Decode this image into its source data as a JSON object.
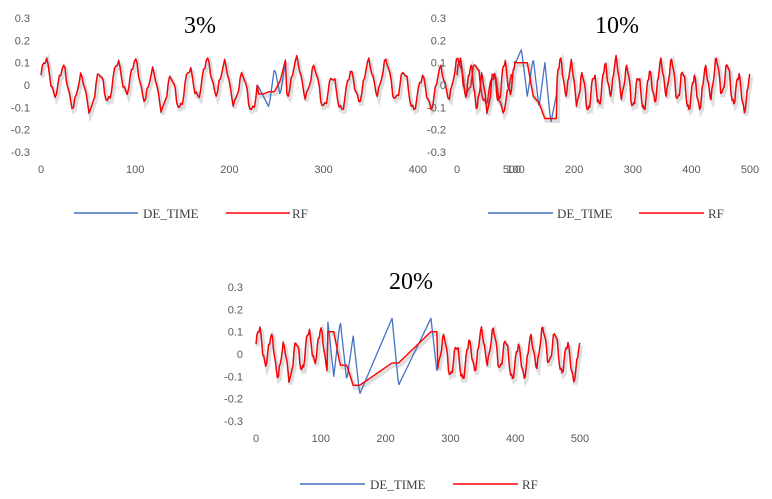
{
  "chart_data": [
    {
      "type": "line",
      "title": "3%",
      "xlim": [
        0,
        500
      ],
      "ylim": [
        -0.3,
        0.3
      ],
      "x_ticks": [
        "0",
        "100",
        "200",
        "300",
        "400",
        "500"
      ],
      "y_ticks": [
        "0.3",
        "0.2",
        "0.1",
        "0",
        "-0.1",
        "-0.2",
        "-0.3"
      ],
      "grid": false,
      "legend": "bottom",
      "series": [
        {
          "name": "DE_TIME",
          "color": "#4472C4",
          "x": [
            230,
            236,
            242,
            248,
            254,
            260
          ],
          "y": [
            0.0,
            -0.05,
            -0.1,
            0.08,
            -0.05,
            0.12
          ]
        },
        {
          "name": "RF",
          "color": "#FF0000",
          "x": [
            230,
            236,
            242,
            248,
            254,
            260
          ],
          "y": [
            -0.04,
            -0.04,
            -0.03,
            -0.03,
            0.02,
            0.12
          ]
        }
      ]
    },
    {
      "type": "line",
      "title": "10%",
      "xlim": [
        0,
        500
      ],
      "ylim": [
        -0.3,
        0.3
      ],
      "x_ticks": [
        "0",
        "100",
        "200",
        "300",
        "400",
        "500"
      ],
      "y_ticks": [
        "0.3",
        "0.2",
        "0.1",
        "0",
        "-0.1",
        "-0.2",
        "-0.3"
      ],
      "grid": false,
      "legend": "bottom",
      "series": [
        {
          "name": "DE_TIME",
          "color": "#4472C4",
          "x": [
            100,
            110,
            120,
            130,
            140,
            150,
            160,
            170
          ],
          "y": [
            0.1,
            0.16,
            -0.05,
            0.12,
            -0.1,
            0.1,
            -0.17,
            -0.04
          ]
        },
        {
          "name": "RF",
          "color": "#FF0000",
          "x": [
            100,
            110,
            120,
            130,
            140,
            150,
            160,
            170
          ],
          "y": [
            0.1,
            0.1,
            0.1,
            -0.05,
            -0.08,
            -0.15,
            -0.15,
            -0.15
          ]
        }
      ]
    },
    {
      "type": "line",
      "title": "20%",
      "xlim": [
        0,
        500
      ],
      "ylim": [
        -0.3,
        0.3
      ],
      "x_ticks": [
        "0",
        "100",
        "200",
        "300",
        "400",
        "500"
      ],
      "y_ticks": [
        "0.3",
        "0.2",
        "0.1",
        "0",
        "-0.1",
        "-0.2",
        "-0.3"
      ],
      "grid": false,
      "legend": "bottom",
      "series": [
        {
          "name": "DE_TIME",
          "color": "#4472C4",
          "x": [
            110,
            120,
            130,
            140,
            150,
            160,
            210,
            220,
            270,
            280
          ],
          "y": [
            0.17,
            -0.1,
            0.15,
            -0.12,
            0.08,
            -0.18,
            0.16,
            -0.14,
            0.16,
            -0.1
          ]
        },
        {
          "name": "RF",
          "color": "#FF0000",
          "x": [
            110,
            120,
            130,
            140,
            150,
            160,
            210,
            220,
            270,
            280
          ],
          "y": [
            0.1,
            0.1,
            -0.05,
            -0.05,
            -0.14,
            -0.14,
            -0.04,
            -0.04,
            0.1,
            0.1
          ]
        }
      ]
    }
  ]
}
